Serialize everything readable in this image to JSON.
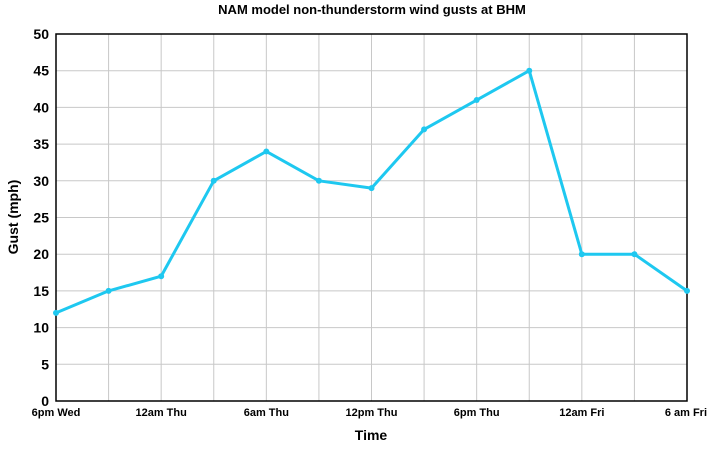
{
  "chart_data": {
    "type": "line",
    "title": "NAM model non-thunderstorm wind gusts at BHM",
    "xlabel": "Time",
    "ylabel": "Gust (mph)",
    "ylim": [
      0,
      50
    ],
    "yticks": [
      0,
      5,
      10,
      15,
      20,
      25,
      30,
      35,
      40,
      45,
      50
    ],
    "grid": true,
    "x_tick_labels": [
      "6pm Wed",
      "",
      "12am Thu",
      "",
      "6am Thu",
      "",
      "12pm Thu",
      "",
      "6pm Thu",
      "",
      "12am Fri",
      "",
      "6 am Fri"
    ],
    "series": [
      {
        "color": "#1ec8f0",
        "values": [
          12,
          15,
          17,
          30,
          34,
          30,
          29,
          37,
          41,
          45,
          20,
          20,
          15
        ]
      }
    ]
  }
}
